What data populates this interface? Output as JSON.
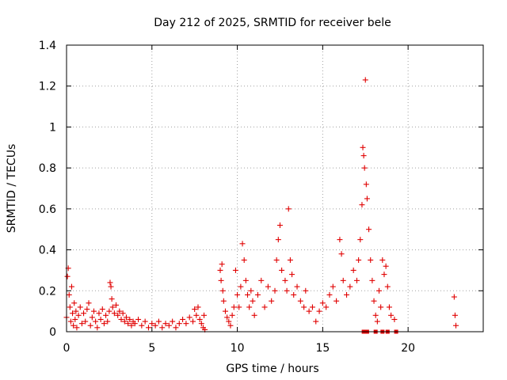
{
  "chart_data": {
    "type": "scatter",
    "title": "Day 212 of 2025, SRMTID for receiver bele",
    "xlabel": "GPS time / hours",
    "ylabel": "SRMTID / TECUs",
    "xlim": [
      0,
      24.4
    ],
    "ylim": [
      0,
      1.4
    ],
    "x_ticks": [
      0,
      5,
      10,
      15,
      20
    ],
    "x_tick_labels": [
      "0",
      "5",
      "10",
      "15",
      "20"
    ],
    "y_ticks": [
      0,
      0.2,
      0.4,
      0.6,
      0.8,
      1.0,
      1.2,
      1.4
    ],
    "y_tick_labels": [
      "0",
      "0.2",
      "0.4",
      "0.6",
      "0.8",
      "1",
      "1.2",
      "1.4"
    ],
    "grid": true,
    "marker": "+",
    "marker_color": "#e00000",
    "series": [
      {
        "name": "SRMTID",
        "points": [
          [
            0.0,
            0.07
          ],
          [
            0.05,
            0.27
          ],
          [
            0.1,
            0.31
          ],
          [
            0.15,
            0.18
          ],
          [
            0.2,
            0.12
          ],
          [
            0.25,
            0.05
          ],
          [
            0.3,
            0.22
          ],
          [
            0.35,
            0.09
          ],
          [
            0.4,
            0.03
          ],
          [
            0.45,
            0.14
          ],
          [
            0.5,
            0.06
          ],
          [
            0.55,
            0.1
          ],
          [
            0.6,
            0.02
          ],
          [
            0.7,
            0.08
          ],
          [
            0.8,
            0.12
          ],
          [
            0.9,
            0.04
          ],
          [
            1.0,
            0.09
          ],
          [
            1.1,
            0.05
          ],
          [
            1.2,
            0.11
          ],
          [
            1.3,
            0.14
          ],
          [
            1.4,
            0.03
          ],
          [
            1.5,
            0.07
          ],
          [
            1.6,
            0.1
          ],
          [
            1.7,
            0.05
          ],
          [
            1.8,
            0.02
          ],
          [
            1.9,
            0.09
          ],
          [
            2.0,
            0.06
          ],
          [
            2.1,
            0.11
          ],
          [
            2.2,
            0.04
          ],
          [
            2.3,
            0.08
          ],
          [
            2.4,
            0.05
          ],
          [
            2.5,
            0.1
          ],
          [
            2.55,
            0.24
          ],
          [
            2.6,
            0.22
          ],
          [
            2.65,
            0.16
          ],
          [
            2.7,
            0.12
          ],
          [
            2.8,
            0.09
          ],
          [
            2.9,
            0.13
          ],
          [
            3.0,
            0.08
          ],
          [
            3.1,
            0.1
          ],
          [
            3.2,
            0.06
          ],
          [
            3.3,
            0.09
          ],
          [
            3.4,
            0.05
          ],
          [
            3.5,
            0.07
          ],
          [
            3.6,
            0.04
          ],
          [
            3.7,
            0.06
          ],
          [
            3.8,
            0.03
          ],
          [
            3.9,
            0.05
          ],
          [
            4.0,
            0.04
          ],
          [
            4.2,
            0.06
          ],
          [
            4.4,
            0.03
          ],
          [
            4.6,
            0.05
          ],
          [
            4.8,
            0.02
          ],
          [
            5.0,
            0.04
          ],
          [
            5.2,
            0.03
          ],
          [
            5.4,
            0.05
          ],
          [
            5.6,
            0.02
          ],
          [
            5.8,
            0.04
          ],
          [
            6.0,
            0.03
          ],
          [
            6.2,
            0.05
          ],
          [
            6.4,
            0.02
          ],
          [
            6.6,
            0.04
          ],
          [
            6.8,
            0.06
          ],
          [
            7.0,
            0.04
          ],
          [
            7.2,
            0.07
          ],
          [
            7.4,
            0.05
          ],
          [
            7.5,
            0.11
          ],
          [
            7.6,
            0.08
          ],
          [
            7.7,
            0.12
          ],
          [
            7.8,
            0.06
          ],
          [
            7.9,
            0.04
          ],
          [
            8.0,
            0.02
          ],
          [
            8.05,
            0.08
          ],
          [
            8.1,
            0.01
          ],
          [
            9.0,
            0.3
          ],
          [
            9.05,
            0.25
          ],
          [
            9.1,
            0.33
          ],
          [
            9.15,
            0.2
          ],
          [
            9.2,
            0.15
          ],
          [
            9.3,
            0.1
          ],
          [
            9.4,
            0.07
          ],
          [
            9.5,
            0.05
          ],
          [
            9.6,
            0.03
          ],
          [
            9.7,
            0.08
          ],
          [
            9.8,
            0.12
          ],
          [
            9.9,
            0.3
          ],
          [
            10.0,
            0.18
          ],
          [
            10.1,
            0.12
          ],
          [
            10.2,
            0.22
          ],
          [
            10.3,
            0.43
          ],
          [
            10.4,
            0.35
          ],
          [
            10.5,
            0.25
          ],
          [
            10.6,
            0.18
          ],
          [
            10.7,
            0.12
          ],
          [
            10.8,
            0.2
          ],
          [
            10.9,
            0.15
          ],
          [
            11.0,
            0.08
          ],
          [
            11.2,
            0.18
          ],
          [
            11.4,
            0.25
          ],
          [
            11.6,
            0.12
          ],
          [
            11.8,
            0.22
          ],
          [
            12.0,
            0.15
          ],
          [
            12.2,
            0.2
          ],
          [
            12.3,
            0.35
          ],
          [
            12.4,
            0.45
          ],
          [
            12.5,
            0.52
          ],
          [
            12.6,
            0.3
          ],
          [
            12.8,
            0.25
          ],
          [
            12.9,
            0.2
          ],
          [
            13.0,
            0.6
          ],
          [
            13.1,
            0.35
          ],
          [
            13.2,
            0.28
          ],
          [
            13.3,
            0.18
          ],
          [
            13.5,
            0.22
          ],
          [
            13.7,
            0.15
          ],
          [
            13.9,
            0.12
          ],
          [
            14.0,
            0.2
          ],
          [
            14.2,
            0.1
          ],
          [
            14.4,
            0.12
          ],
          [
            14.6,
            0.05
          ],
          [
            14.8,
            0.1
          ],
          [
            15.0,
            0.14
          ],
          [
            15.2,
            0.12
          ],
          [
            15.4,
            0.18
          ],
          [
            15.6,
            0.22
          ],
          [
            15.8,
            0.15
          ],
          [
            16.0,
            0.45
          ],
          [
            16.1,
            0.38
          ],
          [
            16.2,
            0.25
          ],
          [
            16.4,
            0.18
          ],
          [
            16.6,
            0.22
          ],
          [
            16.8,
            0.3
          ],
          [
            17.0,
            0.25
          ],
          [
            17.1,
            0.35
          ],
          [
            17.2,
            0.45
          ],
          [
            17.3,
            0.62
          ],
          [
            17.35,
            0.9
          ],
          [
            17.4,
            0.86
          ],
          [
            17.45,
            0.8
          ],
          [
            17.5,
            1.23
          ],
          [
            17.55,
            0.72
          ],
          [
            17.6,
            0.65
          ],
          [
            17.7,
            0.5
          ],
          [
            17.8,
            0.35
          ],
          [
            17.9,
            0.25
          ],
          [
            18.0,
            0.15
          ],
          [
            18.1,
            0.08
          ],
          [
            18.2,
            0.05
          ],
          [
            18.3,
            0.2
          ],
          [
            18.4,
            0.12
          ],
          [
            18.5,
            0.35
          ],
          [
            18.6,
            0.28
          ],
          [
            18.7,
            0.32
          ],
          [
            18.8,
            0.22
          ],
          [
            18.9,
            0.12
          ],
          [
            19.0,
            0.08
          ],
          [
            19.2,
            0.06
          ],
          [
            22.7,
            0.17
          ],
          [
            22.75,
            0.08
          ],
          [
            22.8,
            0.03
          ]
        ],
        "square_markers": [
          [
            17.4,
            0.0
          ],
          [
            17.6,
            0.0
          ],
          [
            18.1,
            0.0
          ],
          [
            18.5,
            0.0
          ],
          [
            18.8,
            0.0
          ],
          [
            19.3,
            0.0
          ]
        ]
      }
    ]
  }
}
